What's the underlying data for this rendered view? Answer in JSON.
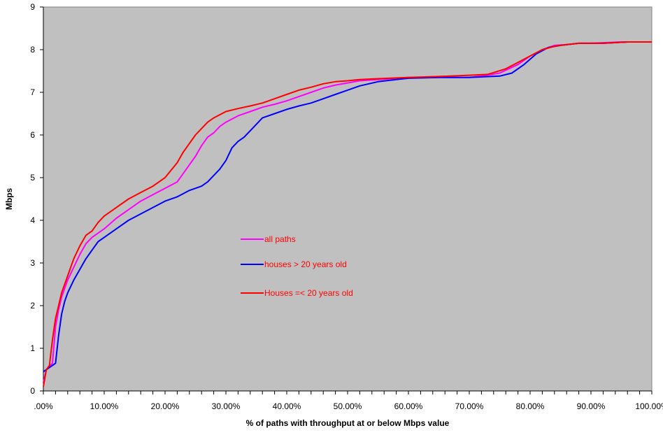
{
  "chart_data": {
    "type": "line",
    "title": "",
    "xlabel": "% of paths with throughput at or below Mbps value",
    "ylabel": "Mbps",
    "xlim": [
      0,
      100
    ],
    "ylim": [
      0,
      9
    ],
    "x_ticks": [
      ".00%",
      "10.00%",
      "20.00%",
      "30.00%",
      "40.00%",
      "50.00%",
      "60.00%",
      "70.00%",
      "80.00%",
      "90.00%",
      "100.00%"
    ],
    "y_ticks": [
      "0",
      "1",
      "2",
      "3",
      "4",
      "5",
      "6",
      "7",
      "8",
      "9"
    ],
    "grid": false,
    "plot_background": "#c0c0c0",
    "legend_placement": "center-left",
    "series": [
      {
        "name": "all paths",
        "color": "#ff00ff",
        "points": [
          [
            0,
            0.2
          ],
          [
            0.5,
            0.5
          ],
          [
            1.5,
            0.65
          ],
          [
            2,
            1.5
          ],
          [
            2.5,
            1.9
          ],
          [
            3,
            2.2
          ],
          [
            4,
            2.6
          ],
          [
            5,
            2.9
          ],
          [
            6,
            3.2
          ],
          [
            7,
            3.45
          ],
          [
            8,
            3.6
          ],
          [
            9,
            3.7
          ],
          [
            10,
            3.8
          ],
          [
            12,
            4.05
          ],
          [
            14,
            4.25
          ],
          [
            16,
            4.45
          ],
          [
            18,
            4.6
          ],
          [
            20,
            4.75
          ],
          [
            22,
            4.9
          ],
          [
            23,
            5.1
          ],
          [
            24,
            5.3
          ],
          [
            25,
            5.5
          ],
          [
            26,
            5.75
          ],
          [
            27,
            5.95
          ],
          [
            28,
            6.05
          ],
          [
            29,
            6.2
          ],
          [
            30,
            6.3
          ],
          [
            32,
            6.45
          ],
          [
            34,
            6.55
          ],
          [
            36,
            6.65
          ],
          [
            38,
            6.72
          ],
          [
            40,
            6.8
          ],
          [
            42,
            6.9
          ],
          [
            44,
            7.0
          ],
          [
            46,
            7.1
          ],
          [
            48,
            7.17
          ],
          [
            50,
            7.22
          ],
          [
            52,
            7.27
          ],
          [
            55,
            7.3
          ],
          [
            60,
            7.35
          ],
          [
            65,
            7.35
          ],
          [
            70,
            7.35
          ],
          [
            72,
            7.38
          ],
          [
            75,
            7.45
          ],
          [
            78,
            7.65
          ],
          [
            80,
            7.85
          ],
          [
            82,
            8.0
          ],
          [
            84,
            8.1
          ],
          [
            86,
            8.12
          ],
          [
            88,
            8.15
          ],
          [
            90,
            8.15
          ],
          [
            95,
            8.18
          ],
          [
            100,
            8.18
          ]
        ]
      },
      {
        "name": "houses > 20 years old",
        "color": "#0000ff",
        "points": [
          [
            0,
            0.45
          ],
          [
            0.5,
            0.5
          ],
          [
            2,
            0.65
          ],
          [
            2.5,
            1.3
          ],
          [
            3,
            1.8
          ],
          [
            3.5,
            2.1
          ],
          [
            4,
            2.3
          ],
          [
            5,
            2.6
          ],
          [
            6,
            2.85
          ],
          [
            7,
            3.1
          ],
          [
            8,
            3.3
          ],
          [
            9,
            3.5
          ],
          [
            10,
            3.6
          ],
          [
            12,
            3.8
          ],
          [
            14,
            4.0
          ],
          [
            16,
            4.15
          ],
          [
            18,
            4.3
          ],
          [
            20,
            4.45
          ],
          [
            22,
            4.55
          ],
          [
            24,
            4.7
          ],
          [
            26,
            4.8
          ],
          [
            27,
            4.9
          ],
          [
            28,
            5.05
          ],
          [
            29,
            5.2
          ],
          [
            30,
            5.4
          ],
          [
            31,
            5.7
          ],
          [
            32,
            5.85
          ],
          [
            33,
            5.95
          ],
          [
            34,
            6.1
          ],
          [
            35,
            6.25
          ],
          [
            36,
            6.4
          ],
          [
            38,
            6.5
          ],
          [
            40,
            6.6
          ],
          [
            42,
            6.68
          ],
          [
            44,
            6.75
          ],
          [
            46,
            6.85
          ],
          [
            48,
            6.95
          ],
          [
            50,
            7.05
          ],
          [
            52,
            7.15
          ],
          [
            55,
            7.25
          ],
          [
            58,
            7.3
          ],
          [
            60,
            7.33
          ],
          [
            65,
            7.35
          ],
          [
            70,
            7.35
          ],
          [
            75,
            7.38
          ],
          [
            77,
            7.45
          ],
          [
            79,
            7.65
          ],
          [
            81,
            7.9
          ],
          [
            83,
            8.05
          ],
          [
            85,
            8.1
          ],
          [
            88,
            8.15
          ],
          [
            92,
            8.15
          ],
          [
            96,
            8.18
          ],
          [
            100,
            8.18
          ]
        ]
      },
      {
        "name": "Houses =< 20 years old",
        "color": "#ff0000",
        "points": [
          [
            0,
            0.1
          ],
          [
            0.5,
            0.5
          ],
          [
            1,
            0.6
          ],
          [
            1.5,
            1.2
          ],
          [
            2,
            1.7
          ],
          [
            2.5,
            2.0
          ],
          [
            3,
            2.3
          ],
          [
            4,
            2.7
          ],
          [
            5,
            3.1
          ],
          [
            6,
            3.4
          ],
          [
            7,
            3.65
          ],
          [
            8,
            3.75
          ],
          [
            9,
            3.95
          ],
          [
            10,
            4.1
          ],
          [
            12,
            4.3
          ],
          [
            14,
            4.5
          ],
          [
            16,
            4.65
          ],
          [
            18,
            4.8
          ],
          [
            20,
            5.0
          ],
          [
            22,
            5.35
          ],
          [
            23,
            5.6
          ],
          [
            24,
            5.8
          ],
          [
            25,
            6.0
          ],
          [
            26,
            6.15
          ],
          [
            27,
            6.3
          ],
          [
            28,
            6.4
          ],
          [
            30,
            6.55
          ],
          [
            32,
            6.62
          ],
          [
            34,
            6.68
          ],
          [
            36,
            6.75
          ],
          [
            38,
            6.85
          ],
          [
            40,
            6.95
          ],
          [
            42,
            7.05
          ],
          [
            44,
            7.12
          ],
          [
            46,
            7.2
          ],
          [
            48,
            7.25
          ],
          [
            50,
            7.27
          ],
          [
            52,
            7.3
          ],
          [
            55,
            7.32
          ],
          [
            60,
            7.35
          ],
          [
            65,
            7.37
          ],
          [
            70,
            7.4
          ],
          [
            73,
            7.42
          ],
          [
            76,
            7.55
          ],
          [
            78,
            7.7
          ],
          [
            80,
            7.85
          ],
          [
            82,
            8.0
          ],
          [
            84,
            8.08
          ],
          [
            86,
            8.12
          ],
          [
            88,
            8.15
          ],
          [
            92,
            8.15
          ],
          [
            96,
            8.18
          ],
          [
            100,
            8.18
          ]
        ]
      }
    ]
  }
}
